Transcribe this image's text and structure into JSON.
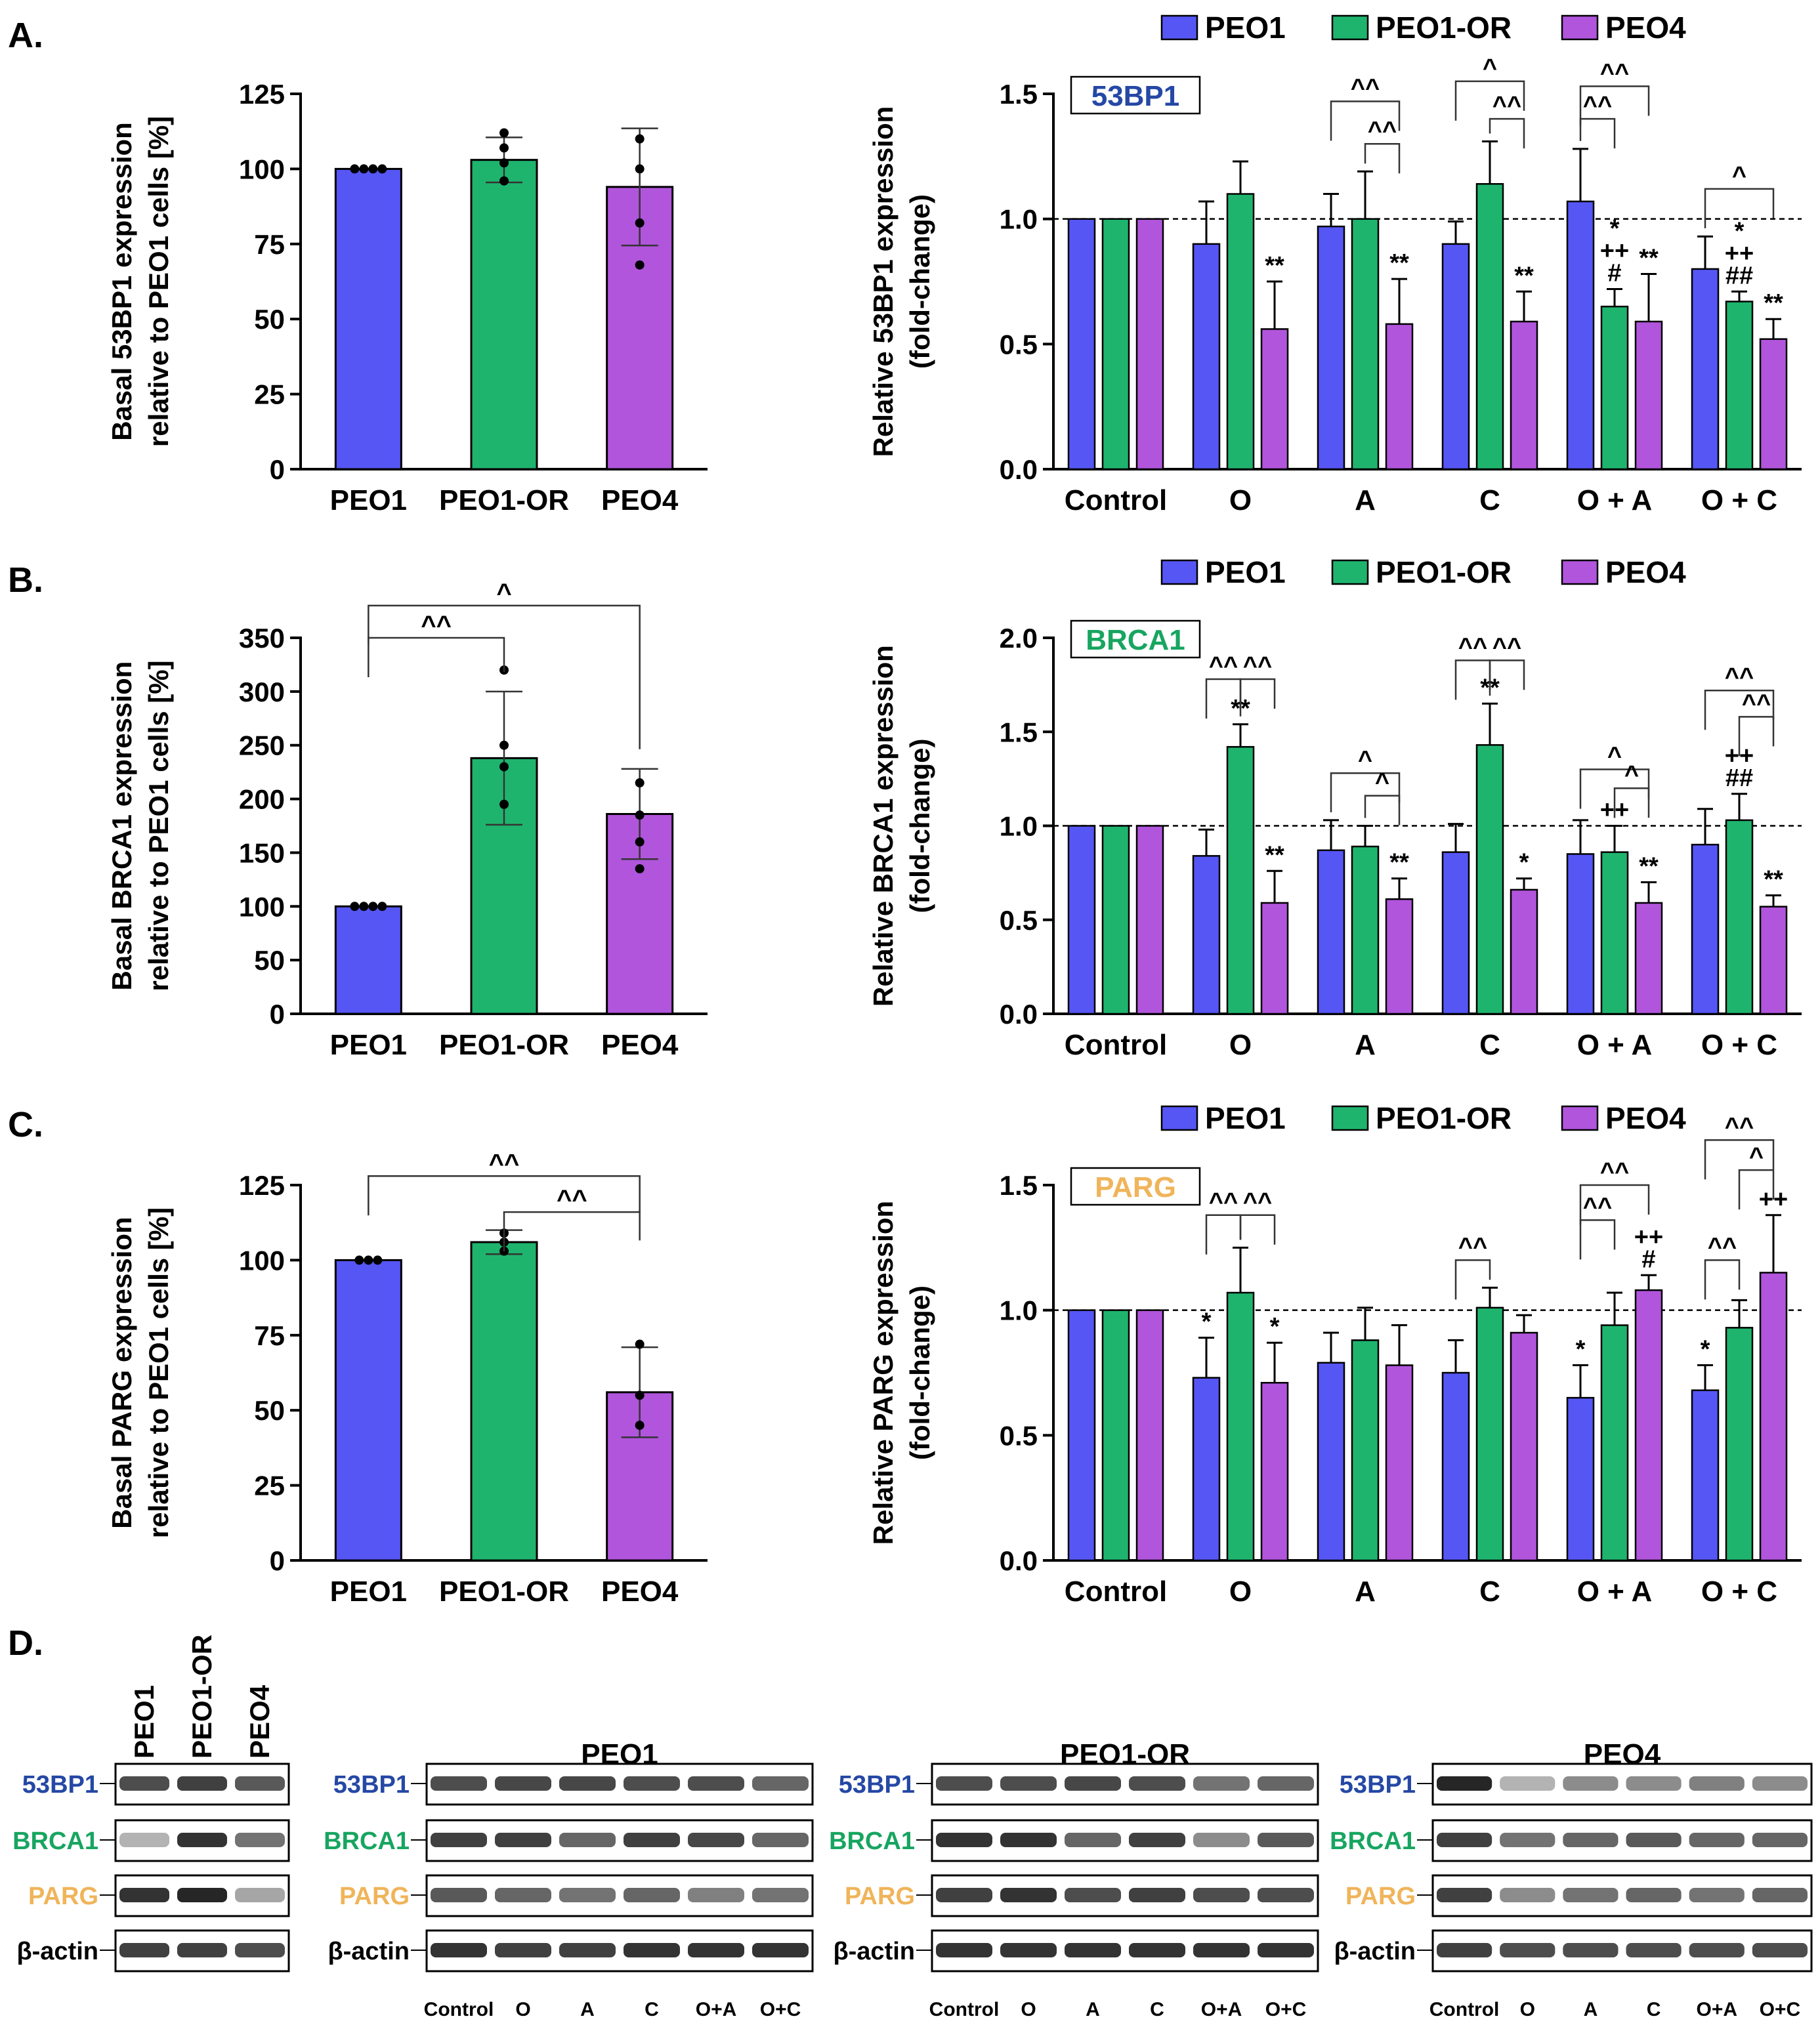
{
  "colors": {
    "PEO1": "#5656F5",
    "PEO1-OR": "#1FB46E",
    "PEO4": "#B155DC",
    "axis": "#000000",
    "53BP1": "#2548A5",
    "BRCA1": "#17A560",
    "PARG": "#F0B45A"
  },
  "legend": [
    "PEO1",
    "PEO1-OR",
    "PEO4"
  ],
  "panel_labels": {
    "A": "A.",
    "B": "B.",
    "C": "C.",
    "D": "D."
  },
  "chart_data": [
    {
      "id": "A-left",
      "type": "bar",
      "title": "",
      "ylabel": [
        "Basal 53BP1 expression",
        "relative to PEO1 cells [%]"
      ],
      "categories": [
        "PEO1",
        "PEO1-OR",
        "PEO4"
      ],
      "values": [
        100,
        103,
        94
      ],
      "errors": [
        0,
        7.5,
        19.5
      ],
      "points": [
        [
          100,
          100,
          100,
          100
        ],
        [
          112,
          107,
          102,
          96
        ],
        [
          110,
          100,
          82,
          68
        ]
      ],
      "ylim": [
        0,
        125
      ],
      "yticks": [
        0,
        25,
        50,
        75,
        100,
        125
      ],
      "brackets": []
    },
    {
      "id": "A-right",
      "type": "bar",
      "gene": "53BP1",
      "ylabel": [
        "Relative 53BP1 expression",
        "(fold-change)"
      ],
      "categories": [
        "Control",
        "O",
        "A",
        "C",
        "O + A",
        "O + C"
      ],
      "series": [
        {
          "name": "PEO1",
          "values": [
            1.0,
            0.9,
            0.97,
            0.9,
            1.07,
            0.8
          ],
          "errors": [
            0,
            0.17,
            0.13,
            0.09,
            0.21,
            0.13
          ]
        },
        {
          "name": "PEO1-OR",
          "values": [
            1.0,
            1.1,
            1.0,
            1.14,
            0.65,
            0.67
          ],
          "errors": [
            0,
            0.13,
            0.19,
            0.17,
            0.07,
            0.04
          ]
        },
        {
          "name": "PEO4",
          "values": [
            1.0,
            0.56,
            0.58,
            0.59,
            0.59,
            0.52
          ],
          "errors": [
            0,
            0.19,
            0.18,
            0.12,
            0.19,
            0.08
          ]
        }
      ],
      "ylim": [
        0,
        1.5
      ],
      "yticks": [
        "0.0",
        "0.5",
        "1.0",
        "1.5"
      ],
      "ref": 1.0,
      "marks": [
        {
          "g": 1,
          "s": 2,
          "text": [
            "**"
          ]
        },
        {
          "g": 2,
          "s": 2,
          "text": [
            "**"
          ]
        },
        {
          "g": 3,
          "s": 2,
          "text": [
            "**"
          ]
        },
        {
          "g": 4,
          "s": 1,
          "text": [
            "*",
            "++",
            "#"
          ]
        },
        {
          "g": 4,
          "s": 2,
          "text": [
            "**"
          ]
        },
        {
          "g": 5,
          "s": 1,
          "text": [
            "*",
            "++",
            "##"
          ]
        },
        {
          "g": 5,
          "s": 2,
          "text": [
            "**"
          ]
        }
      ],
      "brackets": [
        {
          "g": 2,
          "from": 0,
          "to": 2,
          "y": 1.47,
          "label": "^^"
        },
        {
          "g": 2,
          "from": 1,
          "to": 2,
          "y": 1.3,
          "label": "^^"
        },
        {
          "g": 3,
          "from": 0,
          "to": 2,
          "y": 1.55,
          "label": "^"
        },
        {
          "g": 3,
          "from": 1,
          "to": 2,
          "y": 1.4,
          "label": "^^"
        },
        {
          "g": 4,
          "from": 0,
          "to": 2,
          "y": 1.53,
          "label": "^^"
        },
        {
          "g": 4,
          "from": 0,
          "to": 1,
          "y": 1.4,
          "label": "^^"
        },
        {
          "g": 5,
          "from": 0,
          "to": 2,
          "y": 1.12,
          "label": "^"
        }
      ]
    },
    {
      "id": "B-left",
      "type": "bar",
      "ylabel": [
        "Basal BRCA1 expression",
        "relative to PEO1 cells [%]"
      ],
      "categories": [
        "PEO1",
        "PEO1-OR",
        "PEO4"
      ],
      "values": [
        100,
        238,
        186
      ],
      "errors": [
        0,
        62,
        42
      ],
      "points": [
        [
          100,
          100,
          100,
          100
        ],
        [
          320,
          250,
          230,
          195
        ],
        [
          215,
          185,
          160,
          135
        ]
      ],
      "ylim": [
        0,
        350
      ],
      "yticks": [
        0,
        50,
        100,
        150,
        200,
        250,
        300,
        350
      ],
      "brackets": [
        {
          "from": 0,
          "to": 1,
          "y": 350,
          "label": "^^"
        },
        {
          "from": 0,
          "to": 2,
          "y": 380,
          "label": "^"
        }
      ]
    },
    {
      "id": "B-right",
      "type": "bar",
      "gene": "BRCA1",
      "ylabel": [
        "Relative BRCA1 expression",
        "(fold-change)"
      ],
      "categories": [
        "Control",
        "O",
        "A",
        "C",
        "O + A",
        "O + C"
      ],
      "series": [
        {
          "name": "PEO1",
          "values": [
            1.0,
            0.84,
            0.87,
            0.86,
            0.85,
            0.9
          ],
          "errors": [
            0,
            0.14,
            0.16,
            0.15,
            0.18,
            0.19
          ]
        },
        {
          "name": "PEO1-OR",
          "values": [
            1.0,
            1.42,
            0.89,
            1.43,
            0.86,
            1.03
          ],
          "errors": [
            0,
            0.12,
            0.11,
            0.22,
            0.14,
            0.14
          ]
        },
        {
          "name": "PEO4",
          "values": [
            1.0,
            0.59,
            0.61,
            0.66,
            0.59,
            0.57
          ],
          "errors": [
            0,
            0.17,
            0.11,
            0.06,
            0.11,
            0.06
          ]
        }
      ],
      "ylim": [
        0,
        2.0
      ],
      "yticks": [
        "0.0",
        "0.5",
        "1.0",
        "1.5",
        "2.0"
      ],
      "ref": 1.0,
      "marks": [
        {
          "g": 1,
          "s": 1,
          "text": [
            "**"
          ]
        },
        {
          "g": 1,
          "s": 2,
          "text": [
            "**"
          ]
        },
        {
          "g": 2,
          "s": 2,
          "text": [
            "**"
          ]
        },
        {
          "g": 3,
          "s": 1,
          "text": [
            "**"
          ]
        },
        {
          "g": 3,
          "s": 2,
          "text": [
            "*"
          ]
        },
        {
          "g": 4,
          "s": 1,
          "text": [
            "++"
          ]
        },
        {
          "g": 4,
          "s": 2,
          "text": [
            "**"
          ]
        },
        {
          "g": 5,
          "s": 1,
          "text": [
            "++",
            "##"
          ]
        },
        {
          "g": 5,
          "s": 2,
          "text": [
            "**"
          ]
        }
      ],
      "brackets": [
        {
          "g": 1,
          "from": 0,
          "to": 1,
          "y": 1.78,
          "label": "^^"
        },
        {
          "g": 1,
          "from": 1,
          "to": 2,
          "y": 1.78,
          "label": "^^"
        },
        {
          "g": 2,
          "from": 0,
          "to": 2,
          "y": 1.28,
          "label": "^"
        },
        {
          "g": 2,
          "from": 1,
          "to": 2,
          "y": 1.16,
          "label": "^"
        },
        {
          "g": 3,
          "from": 0,
          "to": 1,
          "y": 1.88,
          "label": "^^"
        },
        {
          "g": 3,
          "from": 1,
          "to": 2,
          "y": 1.88,
          "label": "^^"
        },
        {
          "g": 4,
          "from": 0,
          "to": 2,
          "y": 1.3,
          "label": "^"
        },
        {
          "g": 4,
          "from": 1,
          "to": 2,
          "y": 1.2,
          "label": "^"
        },
        {
          "g": 5,
          "from": 0,
          "to": 2,
          "y": 1.72,
          "label": "^^"
        },
        {
          "g": 5,
          "from": 1,
          "to": 2,
          "y": 1.58,
          "label": "^^"
        }
      ]
    },
    {
      "id": "C-left",
      "type": "bar",
      "ylabel": [
        "Basal PARG expression",
        "relative to PEO1 cells [%]"
      ],
      "categories": [
        "PEO1",
        "PEO1-OR",
        "PEO4"
      ],
      "values": [
        100,
        106,
        56
      ],
      "errors": [
        0,
        4,
        15
      ],
      "points": [
        [
          100,
          100,
          100
        ],
        [
          109,
          106,
          103
        ],
        [
          72,
          55,
          45
        ]
      ],
      "ylim": [
        0,
        125
      ],
      "yticks": [
        0,
        25,
        50,
        75,
        100,
        125
      ],
      "brackets": [
        {
          "from": 0,
          "to": 2,
          "y": 128,
          "label": "^^"
        },
        {
          "from": 1,
          "to": 2,
          "y": 116,
          "label": "^^"
        }
      ]
    },
    {
      "id": "C-right",
      "type": "bar",
      "gene": "PARG",
      "ylabel": [
        "Relative PARG expression",
        "(fold-change)"
      ],
      "categories": [
        "Control",
        "O",
        "A",
        "C",
        "O + A",
        "O + C"
      ],
      "series": [
        {
          "name": "PEO1",
          "values": [
            1.0,
            0.73,
            0.79,
            0.75,
            0.65,
            0.68
          ],
          "errors": [
            0,
            0.16,
            0.12,
            0.13,
            0.13,
            0.1
          ]
        },
        {
          "name": "PEO1-OR",
          "values": [
            1.0,
            1.07,
            0.88,
            1.01,
            0.94,
            0.93
          ],
          "errors": [
            0,
            0.18,
            0.13,
            0.08,
            0.13,
            0.11
          ]
        },
        {
          "name": "PEO4",
          "values": [
            1.0,
            0.71,
            0.78,
            0.91,
            1.08,
            1.15
          ],
          "errors": [
            0,
            0.16,
            0.16,
            0.07,
            0.06,
            0.23
          ]
        }
      ],
      "ylim": [
        0,
        1.5
      ],
      "yticks": [
        "0.0",
        "0.5",
        "1.0",
        "1.5"
      ],
      "ref": 1.0,
      "marks": [
        {
          "g": 1,
          "s": 0,
          "text": [
            "*"
          ]
        },
        {
          "g": 1,
          "s": 2,
          "text": [
            "*"
          ]
        },
        {
          "g": 4,
          "s": 0,
          "text": [
            "*"
          ]
        },
        {
          "g": 4,
          "s": 2,
          "text": [
            "++",
            "#"
          ]
        },
        {
          "g": 5,
          "s": 0,
          "text": [
            "*"
          ]
        },
        {
          "g": 5,
          "s": 2,
          "text": [
            "++"
          ]
        }
      ],
      "brackets": [
        {
          "g": 1,
          "from": 0,
          "to": 1,
          "y": 1.38,
          "label": "^^"
        },
        {
          "g": 1,
          "from": 1,
          "to": 2,
          "y": 1.38,
          "label": "^^"
        },
        {
          "g": 3,
          "from": 0,
          "to": 1,
          "y": 1.2,
          "label": "^^"
        },
        {
          "g": 4,
          "from": 0,
          "to": 2,
          "y": 1.5,
          "label": "^^"
        },
        {
          "g": 4,
          "from": 0,
          "to": 1,
          "y": 1.36,
          "label": "^^"
        },
        {
          "g": 5,
          "from": 0,
          "to": 2,
          "y": 1.68,
          "label": "^^"
        },
        {
          "g": 5,
          "from": 1,
          "to": 2,
          "y": 1.56,
          "label": "^"
        },
        {
          "g": 5,
          "from": 0,
          "to": 1,
          "y": 1.2,
          "label": "^^"
        }
      ]
    }
  ],
  "blots": {
    "rows": [
      "53BP1",
      "BRCA1",
      "PARG",
      "β-actin"
    ],
    "basal_lanes": [
      "PEO1",
      "PEO1-OR",
      "PEO4"
    ],
    "panels": [
      {
        "title": "PEO1",
        "lanes": [
          "Control",
          "O",
          "A",
          "C",
          "O+A",
          "O+C"
        ],
        "intensity": [
          [
            0.7,
            0.72,
            0.72,
            0.7,
            0.7,
            0.6
          ],
          [
            0.75,
            0.75,
            0.6,
            0.75,
            0.72,
            0.6
          ],
          [
            0.65,
            0.6,
            0.55,
            0.6,
            0.5,
            0.55
          ],
          [
            0.8,
            0.75,
            0.75,
            0.8,
            0.8,
            0.8
          ]
        ]
      },
      {
        "title": "PEO1-OR",
        "lanes": [
          "Control",
          "O",
          "A",
          "C",
          "O+A",
          "O+C"
        ],
        "intensity": [
          [
            0.7,
            0.7,
            0.72,
            0.7,
            0.55,
            0.6
          ],
          [
            0.8,
            0.8,
            0.6,
            0.75,
            0.45,
            0.65
          ],
          [
            0.75,
            0.8,
            0.7,
            0.75,
            0.7,
            0.7
          ],
          [
            0.8,
            0.8,
            0.8,
            0.8,
            0.8,
            0.8
          ]
        ]
      },
      {
        "title": "PEO4",
        "lanes": [
          "Control",
          "O",
          "A",
          "C",
          "O+A",
          "O+C"
        ],
        "intensity": [
          [
            0.85,
            0.3,
            0.45,
            0.45,
            0.5,
            0.45
          ],
          [
            0.75,
            0.55,
            0.6,
            0.65,
            0.6,
            0.6
          ],
          [
            0.75,
            0.45,
            0.55,
            0.6,
            0.55,
            0.6
          ],
          [
            0.75,
            0.7,
            0.7,
            0.7,
            0.7,
            0.7
          ]
        ]
      }
    ],
    "basal_intensity": [
      [
        0.7,
        0.75,
        0.65
      ],
      [
        0.3,
        0.8,
        0.55
      ],
      [
        0.8,
        0.85,
        0.35
      ],
      [
        0.75,
        0.75,
        0.7
      ]
    ]
  }
}
